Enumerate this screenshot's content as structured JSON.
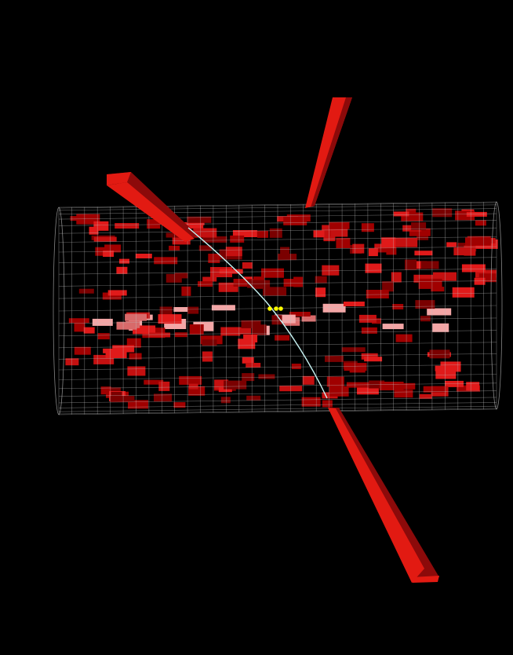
{
  "scene": {
    "background_color": "#000000",
    "detector_mesh_color": "#bfbfbf",
    "cell_colors": {
      "deep": "#7a0000",
      "dark": "#a00000",
      "mid": "#c41010",
      "bright": "#e01a1a",
      "pink": "#d86a6a",
      "light_pink": "#f4a6a6"
    },
    "jet_tower_color": "#e21a12",
    "jet_tower_shadow_color": "#8c0a0a",
    "track_color": "#c8f4f4",
    "vertex_color": "#ffff00",
    "mesh_rings": 34,
    "mesh_longitudinal_lines": 26,
    "cell_count": 230
  }
}
